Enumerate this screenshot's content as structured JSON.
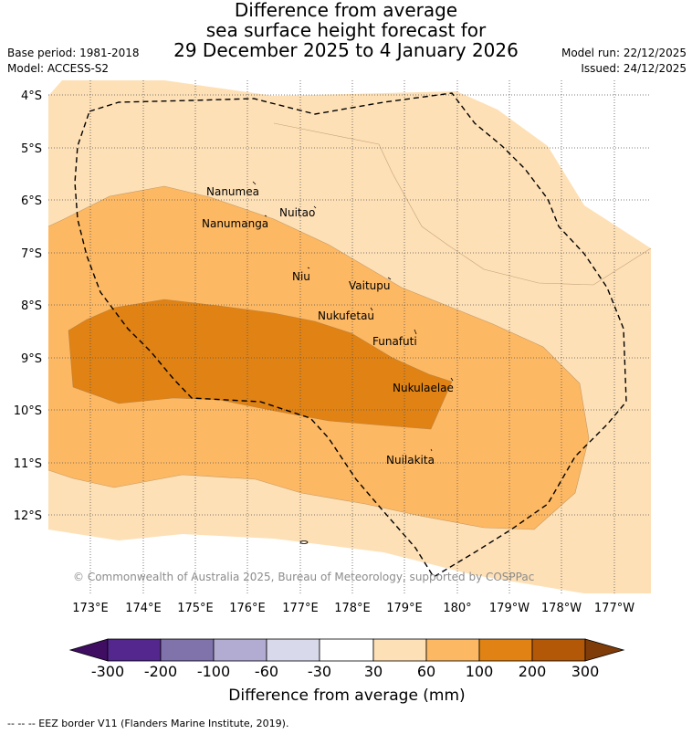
{
  "title": {
    "line1": "Difference from average",
    "line2": "sea surface height forecast for",
    "line3": "29 December 2025 to 4 January 2026"
  },
  "meta_left": {
    "base_period": "Base period: 1981-2018",
    "model": "Model: ACCESS-S2"
  },
  "meta_right": {
    "model_run": "Model run: 22/12/2025",
    "issued": "Issued: 24/12/2025"
  },
  "map": {
    "lat_labels": [
      "4°S",
      "5°S",
      "6°S",
      "7°S",
      "8°S",
      "9°S",
      "10°S",
      "11°S",
      "12°S"
    ],
    "lon_labels": [
      "173°E",
      "174°E",
      "175°E",
      "176°E",
      "177°E",
      "178°E",
      "179°E",
      "180°",
      "179°W",
      "178°W",
      "177°W"
    ],
    "places": [
      "Nanumea",
      "Nuitao",
      "Nanumanga",
      "Niu",
      "Vaitupu",
      "Nukufetau",
      "Funafuti",
      "Nukulaelae",
      "Nuilakita"
    ],
    "copyright": "© Commonwealth of Australia 2025, Bureau of Meteorology, supported by COSPPac"
  },
  "colorbar": {
    "colors": [
      "#3f0d61",
      "#54278f",
      "#8073ac",
      "#b2abd2",
      "#d8daeb",
      "#ffffff",
      "#fee0b6",
      "#fdb863",
      "#e08214",
      "#b35806",
      "#7f3b08"
    ],
    "ticks": [
      "-300",
      "-200",
      "-100",
      "-60",
      "-30",
      "30",
      "60",
      "100",
      "200",
      "300"
    ],
    "label": "Difference from average (mm)"
  },
  "footnote": "--  --  -- EEZ border V11 (Flanders Marine Institute, 2019)."
}
